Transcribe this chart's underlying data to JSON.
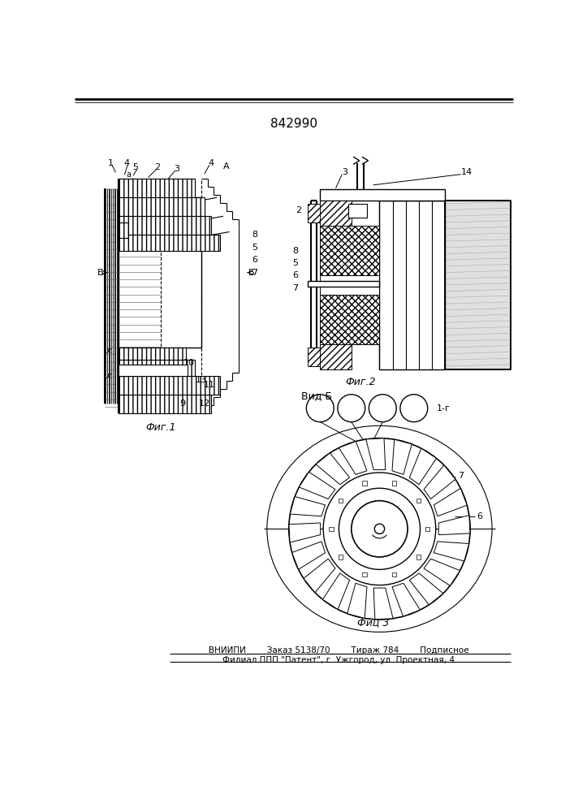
{
  "patent_number": "842990",
  "fig1_caption": "Фиг.1",
  "fig2_caption": "Фиг.2",
  "fig3_caption": "Фиц 3",
  "vidb_caption": "Вид Б",
  "bottom_line1": "ВНИИПИ        Заказ 5138/70        Тираж 784        Подписное",
  "bottom_line2": "Филиал ППП \"Патент\", г. Ужгород, ул. Проектная, 4",
  "bg_color": "#ffffff"
}
